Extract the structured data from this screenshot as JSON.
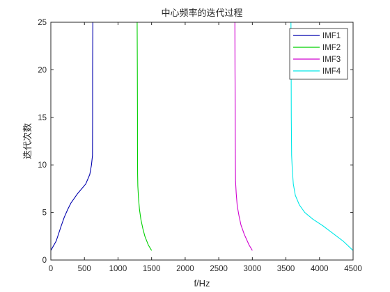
{
  "chart_data": {
    "type": "line",
    "title": "中心频率的迭代过程",
    "xlabel": "f/Hz",
    "ylabel": "迭代次数",
    "xlim": [
      0,
      4500
    ],
    "ylim": [
      0,
      25
    ],
    "xticks": [
      "0",
      "500",
      "1000",
      "1500",
      "2000",
      "2500",
      "3000",
      "3500",
      "4000",
      "4500"
    ],
    "yticks": [
      "0",
      "5",
      "10",
      "15",
      "20",
      "25"
    ],
    "grid": false,
    "legend_position": "top-right",
    "series": [
      {
        "name": "IMF1",
        "color": "#0000ad",
        "x": [
          0,
          80,
          150,
          200,
          250,
          300,
          400,
          520,
          580,
          605,
          620,
          622,
          622,
          625
        ],
        "y": [
          1,
          2,
          3.5,
          4.5,
          5.3,
          6,
          7,
          8,
          9,
          10,
          11,
          15,
          20,
          25
        ]
      },
      {
        "name": "IMF2",
        "color": "#00d000",
        "x": [
          1500,
          1450,
          1400,
          1370,
          1340,
          1320,
          1305,
          1295,
          1292,
          1290,
          1290,
          1288,
          1285
        ],
        "y": [
          1,
          1.6,
          2.5,
          3.3,
          4.3,
          5.3,
          6.5,
          7.8,
          9,
          12,
          15,
          20,
          25
        ]
      },
      {
        "name": "IMF3",
        "color": "#d000d0",
        "x": [
          3000,
          2950,
          2880,
          2830,
          2800,
          2775,
          2760,
          2750,
          2748,
          2746,
          2745,
          2742,
          2740
        ],
        "y": [
          1,
          1.6,
          2.7,
          3.7,
          4.7,
          5.7,
          7,
          8.3,
          10,
          13,
          16,
          20,
          25
        ]
      },
      {
        "name": "IMF4",
        "color": "#00e8e8",
        "x": [
          4500,
          4350,
          4200,
          4050,
          3900,
          3780,
          3700,
          3640,
          3610,
          3595,
          3585,
          3580,
          3578,
          3575
        ],
        "y": [
          1,
          2,
          2.8,
          3.6,
          4.3,
          5,
          5.8,
          6.8,
          8,
          9.5,
          11,
          15,
          20,
          25
        ]
      }
    ]
  }
}
